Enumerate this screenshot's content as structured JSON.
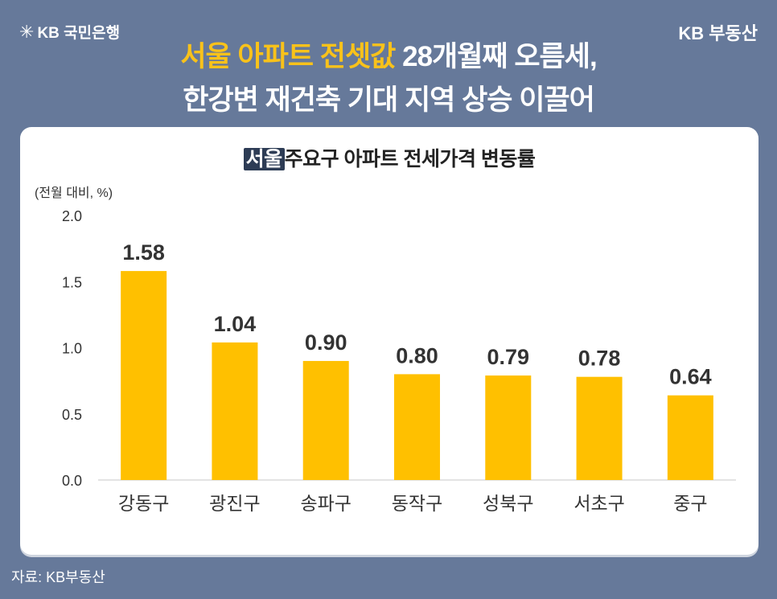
{
  "header": {
    "bank_logo": "KB 국민은행",
    "brand": "KB 부동산",
    "headline_highlight": "서울 아파트 전셋값",
    "headline_rest_line1": " 28개월째 오름세,",
    "headline_line2": "한강변 재건축 기대 지역 상승 이끌어"
  },
  "footer": {
    "source": "자료: KB부동산"
  },
  "colors": {
    "background": "#66799a",
    "bar": "#ffc000",
    "highlight": "#f9c21a",
    "title_box": "#2d3c55"
  },
  "chart_data": {
    "type": "bar",
    "title_highlight": "서울",
    "title": "주요구 아파트 전세가격 변동률",
    "ylabel": "(전월 대비, %)",
    "categories": [
      "강동구",
      "광진구",
      "송파구",
      "동작구",
      "성북구",
      "서초구",
      "중구"
    ],
    "values": [
      1.58,
      1.04,
      0.9,
      0.8,
      0.79,
      0.78,
      0.64
    ],
    "value_labels": [
      "1.58",
      "1.04",
      "0.90",
      "0.80",
      "0.79",
      "0.78",
      "0.64"
    ],
    "yticks": [
      "0.0",
      "0.5",
      "1.0",
      "1.5",
      "2.0"
    ],
    "ylim": [
      0,
      2.0
    ],
    "grid": false,
    "legend": "none"
  }
}
